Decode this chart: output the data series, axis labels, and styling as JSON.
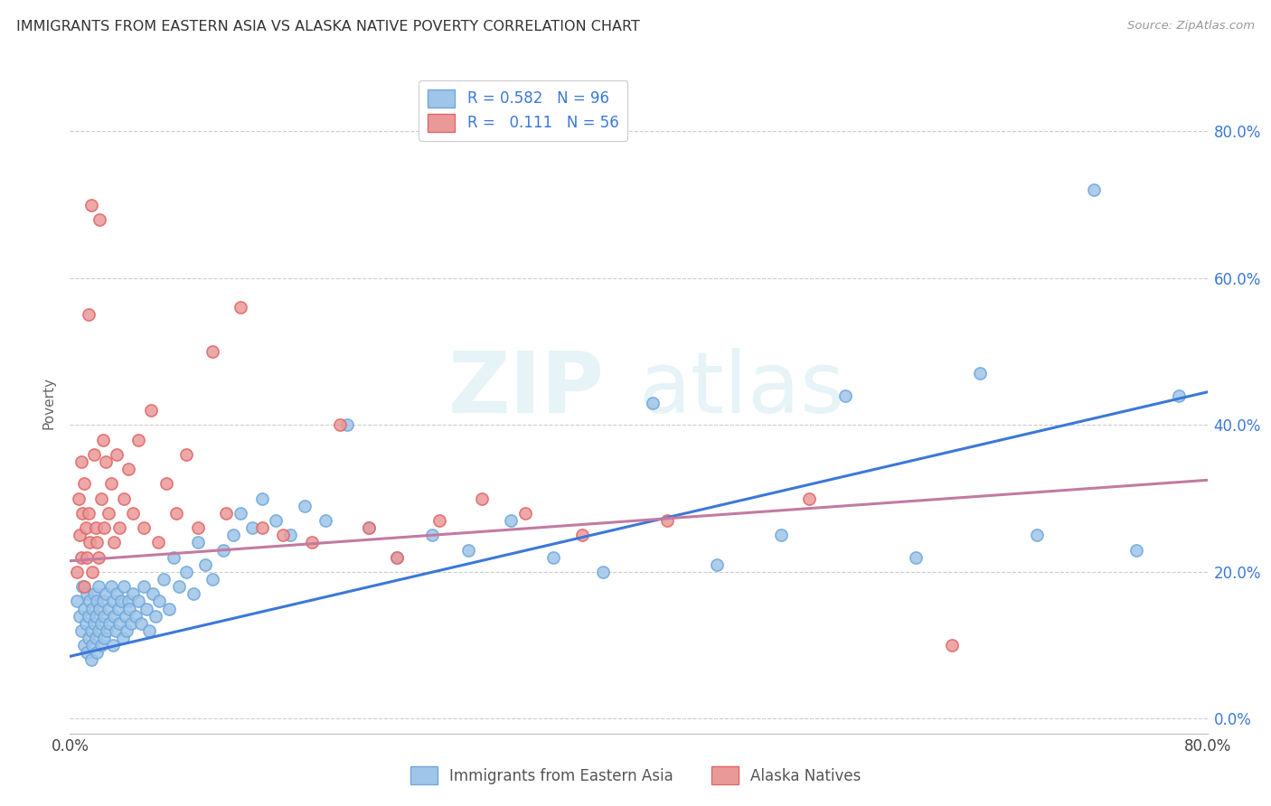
{
  "title": "IMMIGRANTS FROM EASTERN ASIA VS ALASKA NATIVE POVERTY CORRELATION CHART",
  "source": "Source: ZipAtlas.com",
  "ylabel": "Poverty",
  "xlim": [
    0.0,
    0.8
  ],
  "ylim": [
    -0.02,
    0.88
  ],
  "blue_R": 0.582,
  "blue_N": 96,
  "pink_R": 0.111,
  "pink_N": 56,
  "blue_color": "#9fc5e8",
  "pink_color": "#ea9999",
  "blue_edge_color": "#6fa8dc",
  "pink_edge_color": "#e06666",
  "blue_line_color": "#3c78d8",
  "pink_line_color": "#c27ba0",
  "legend_blue_label": "Immigrants from Eastern Asia",
  "legend_pink_label": "Alaska Natives",
  "watermark": "ZIPatlas",
  "background_color": "#ffffff",
  "blue_line_x0": 0.0,
  "blue_line_y0": 0.085,
  "blue_line_x1": 0.8,
  "blue_line_y1": 0.445,
  "pink_line_x0": 0.0,
  "pink_line_y0": 0.215,
  "pink_line_x1": 0.8,
  "pink_line_y1": 0.325,
  "blue_x": [
    0.005,
    0.007,
    0.008,
    0.009,
    0.01,
    0.01,
    0.011,
    0.012,
    0.012,
    0.013,
    0.013,
    0.014,
    0.015,
    0.015,
    0.016,
    0.016,
    0.017,
    0.017,
    0.018,
    0.018,
    0.019,
    0.019,
    0.02,
    0.02,
    0.021,
    0.022,
    0.022,
    0.023,
    0.024,
    0.024,
    0.025,
    0.026,
    0.027,
    0.028,
    0.029,
    0.03,
    0.03,
    0.031,
    0.032,
    0.033,
    0.034,
    0.035,
    0.036,
    0.037,
    0.038,
    0.039,
    0.04,
    0.041,
    0.042,
    0.043,
    0.044,
    0.046,
    0.048,
    0.05,
    0.052,
    0.054,
    0.056,
    0.058,
    0.06,
    0.063,
    0.066,
    0.07,
    0.073,
    0.077,
    0.082,
    0.087,
    0.09,
    0.095,
    0.1,
    0.108,
    0.115,
    0.12,
    0.128,
    0.135,
    0.145,
    0.155,
    0.165,
    0.18,
    0.195,
    0.21,
    0.23,
    0.255,
    0.28,
    0.31,
    0.34,
    0.375,
    0.41,
    0.455,
    0.5,
    0.545,
    0.595,
    0.64,
    0.68,
    0.72,
    0.75,
    0.78
  ],
  "blue_y": [
    0.16,
    0.14,
    0.12,
    0.18,
    0.1,
    0.15,
    0.13,
    0.17,
    0.09,
    0.11,
    0.14,
    0.16,
    0.12,
    0.08,
    0.15,
    0.1,
    0.13,
    0.17,
    0.11,
    0.14,
    0.16,
    0.09,
    0.18,
    0.12,
    0.15,
    0.13,
    0.1,
    0.16,
    0.14,
    0.11,
    0.17,
    0.12,
    0.15,
    0.13,
    0.18,
    0.1,
    0.16,
    0.14,
    0.12,
    0.17,
    0.15,
    0.13,
    0.16,
    0.11,
    0.18,
    0.14,
    0.12,
    0.16,
    0.15,
    0.13,
    0.17,
    0.14,
    0.16,
    0.13,
    0.18,
    0.15,
    0.12,
    0.17,
    0.14,
    0.16,
    0.19,
    0.15,
    0.22,
    0.18,
    0.2,
    0.17,
    0.24,
    0.21,
    0.19,
    0.23,
    0.25,
    0.28,
    0.26,
    0.3,
    0.27,
    0.25,
    0.29,
    0.27,
    0.4,
    0.26,
    0.22,
    0.25,
    0.23,
    0.27,
    0.22,
    0.2,
    0.43,
    0.21,
    0.25,
    0.44,
    0.22,
    0.47,
    0.25,
    0.72,
    0.23,
    0.44
  ],
  "pink_x": [
    0.005,
    0.006,
    0.007,
    0.008,
    0.008,
    0.009,
    0.01,
    0.01,
    0.011,
    0.012,
    0.013,
    0.013,
    0.014,
    0.015,
    0.016,
    0.017,
    0.018,
    0.019,
    0.02,
    0.021,
    0.022,
    0.023,
    0.024,
    0.025,
    0.027,
    0.029,
    0.031,
    0.033,
    0.035,
    0.038,
    0.041,
    0.044,
    0.048,
    0.052,
    0.057,
    0.062,
    0.068,
    0.075,
    0.082,
    0.09,
    0.1,
    0.11,
    0.12,
    0.135,
    0.15,
    0.17,
    0.19,
    0.21,
    0.23,
    0.26,
    0.29,
    0.32,
    0.36,
    0.42,
    0.52,
    0.62
  ],
  "pink_y": [
    0.2,
    0.3,
    0.25,
    0.35,
    0.22,
    0.28,
    0.18,
    0.32,
    0.26,
    0.22,
    0.55,
    0.28,
    0.24,
    0.7,
    0.2,
    0.36,
    0.26,
    0.24,
    0.22,
    0.68,
    0.3,
    0.38,
    0.26,
    0.35,
    0.28,
    0.32,
    0.24,
    0.36,
    0.26,
    0.3,
    0.34,
    0.28,
    0.38,
    0.26,
    0.42,
    0.24,
    0.32,
    0.28,
    0.36,
    0.26,
    0.5,
    0.28,
    0.56,
    0.26,
    0.25,
    0.24,
    0.4,
    0.26,
    0.22,
    0.27,
    0.3,
    0.28,
    0.25,
    0.27,
    0.3,
    0.1
  ]
}
